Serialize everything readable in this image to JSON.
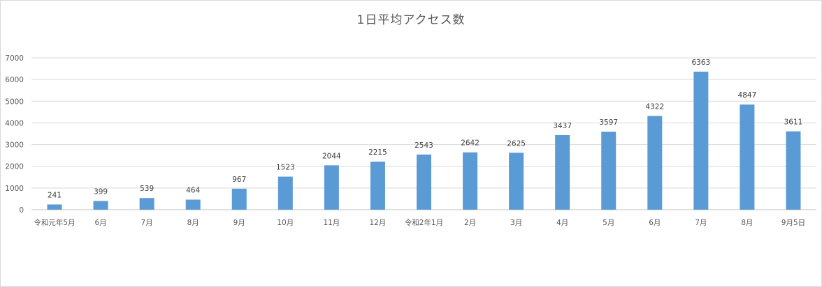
{
  "chart_data": {
    "type": "bar",
    "title": "1日平均アクセス数",
    "xlabel": "",
    "ylabel": "",
    "categories": [
      "令和元年5月",
      "6月",
      "7月",
      "8月",
      "9月",
      "10月",
      "11月",
      "12月",
      "令和2年1月",
      "2月",
      "3月",
      "4月",
      "5月",
      "6月",
      "7月",
      "8月",
      "9月5日"
    ],
    "values": [
      241,
      399,
      539,
      464,
      967,
      1523,
      2044,
      2215,
      2543,
      2642,
      2625,
      3437,
      3597,
      4322,
      6363,
      4847,
      3611
    ],
    "ylim": [
      0,
      7000
    ],
    "yticks": [
      "0",
      "1000",
      "2000",
      "3000",
      "4000",
      "5000",
      "6000",
      "7000"
    ],
    "grid": true,
    "legend": "none",
    "colors": {
      "bar": "#5b9bd5",
      "grid": "#d9d9d9",
      "axis": "#bfbfbf"
    }
  }
}
